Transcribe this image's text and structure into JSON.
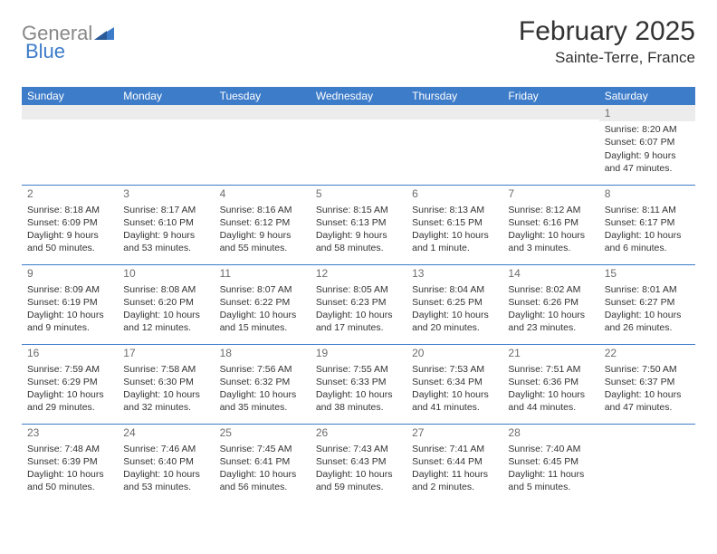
{
  "brand": {
    "part1": "General",
    "part2": "Blue"
  },
  "title": "February 2025",
  "subtitle": "Sainte-Terre, France",
  "colors": {
    "header_bg": "#3d7cc9",
    "header_text": "#ffffff",
    "divider": "#3d7cc9",
    "daynum": "#6c6c6c",
    "body_text": "#333333",
    "blank_bg": "#ececec"
  },
  "day_headers": [
    "Sunday",
    "Monday",
    "Tuesday",
    "Wednesday",
    "Thursday",
    "Friday",
    "Saturday"
  ],
  "weeks": [
    [
      {
        "day": "",
        "body": ""
      },
      {
        "day": "",
        "body": ""
      },
      {
        "day": "",
        "body": ""
      },
      {
        "day": "",
        "body": ""
      },
      {
        "day": "",
        "body": ""
      },
      {
        "day": "",
        "body": ""
      },
      {
        "day": "1",
        "body": "Sunrise: 8:20 AM\nSunset: 6:07 PM\nDaylight: 9 hours and 47 minutes."
      }
    ],
    [
      {
        "day": "2",
        "body": "Sunrise: 8:18 AM\nSunset: 6:09 PM\nDaylight: 9 hours and 50 minutes."
      },
      {
        "day": "3",
        "body": "Sunrise: 8:17 AM\nSunset: 6:10 PM\nDaylight: 9 hours and 53 minutes."
      },
      {
        "day": "4",
        "body": "Sunrise: 8:16 AM\nSunset: 6:12 PM\nDaylight: 9 hours and 55 minutes."
      },
      {
        "day": "5",
        "body": "Sunrise: 8:15 AM\nSunset: 6:13 PM\nDaylight: 9 hours and 58 minutes."
      },
      {
        "day": "6",
        "body": "Sunrise: 8:13 AM\nSunset: 6:15 PM\nDaylight: 10 hours and 1 minute."
      },
      {
        "day": "7",
        "body": "Sunrise: 8:12 AM\nSunset: 6:16 PM\nDaylight: 10 hours and 3 minutes."
      },
      {
        "day": "8",
        "body": "Sunrise: 8:11 AM\nSunset: 6:17 PM\nDaylight: 10 hours and 6 minutes."
      }
    ],
    [
      {
        "day": "9",
        "body": "Sunrise: 8:09 AM\nSunset: 6:19 PM\nDaylight: 10 hours and 9 minutes."
      },
      {
        "day": "10",
        "body": "Sunrise: 8:08 AM\nSunset: 6:20 PM\nDaylight: 10 hours and 12 minutes."
      },
      {
        "day": "11",
        "body": "Sunrise: 8:07 AM\nSunset: 6:22 PM\nDaylight: 10 hours and 15 minutes."
      },
      {
        "day": "12",
        "body": "Sunrise: 8:05 AM\nSunset: 6:23 PM\nDaylight: 10 hours and 17 minutes."
      },
      {
        "day": "13",
        "body": "Sunrise: 8:04 AM\nSunset: 6:25 PM\nDaylight: 10 hours and 20 minutes."
      },
      {
        "day": "14",
        "body": "Sunrise: 8:02 AM\nSunset: 6:26 PM\nDaylight: 10 hours and 23 minutes."
      },
      {
        "day": "15",
        "body": "Sunrise: 8:01 AM\nSunset: 6:27 PM\nDaylight: 10 hours and 26 minutes."
      }
    ],
    [
      {
        "day": "16",
        "body": "Sunrise: 7:59 AM\nSunset: 6:29 PM\nDaylight: 10 hours and 29 minutes."
      },
      {
        "day": "17",
        "body": "Sunrise: 7:58 AM\nSunset: 6:30 PM\nDaylight: 10 hours and 32 minutes."
      },
      {
        "day": "18",
        "body": "Sunrise: 7:56 AM\nSunset: 6:32 PM\nDaylight: 10 hours and 35 minutes."
      },
      {
        "day": "19",
        "body": "Sunrise: 7:55 AM\nSunset: 6:33 PM\nDaylight: 10 hours and 38 minutes."
      },
      {
        "day": "20",
        "body": "Sunrise: 7:53 AM\nSunset: 6:34 PM\nDaylight: 10 hours and 41 minutes."
      },
      {
        "day": "21",
        "body": "Sunrise: 7:51 AM\nSunset: 6:36 PM\nDaylight: 10 hours and 44 minutes."
      },
      {
        "day": "22",
        "body": "Sunrise: 7:50 AM\nSunset: 6:37 PM\nDaylight: 10 hours and 47 minutes."
      }
    ],
    [
      {
        "day": "23",
        "body": "Sunrise: 7:48 AM\nSunset: 6:39 PM\nDaylight: 10 hours and 50 minutes."
      },
      {
        "day": "24",
        "body": "Sunrise: 7:46 AM\nSunset: 6:40 PM\nDaylight: 10 hours and 53 minutes."
      },
      {
        "day": "25",
        "body": "Sunrise: 7:45 AM\nSunset: 6:41 PM\nDaylight: 10 hours and 56 minutes."
      },
      {
        "day": "26",
        "body": "Sunrise: 7:43 AM\nSunset: 6:43 PM\nDaylight: 10 hours and 59 minutes."
      },
      {
        "day": "27",
        "body": "Sunrise: 7:41 AM\nSunset: 6:44 PM\nDaylight: 11 hours and 2 minutes."
      },
      {
        "day": "28",
        "body": "Sunrise: 7:40 AM\nSunset: 6:45 PM\nDaylight: 11 hours and 5 minutes."
      },
      {
        "day": "",
        "body": ""
      }
    ]
  ]
}
